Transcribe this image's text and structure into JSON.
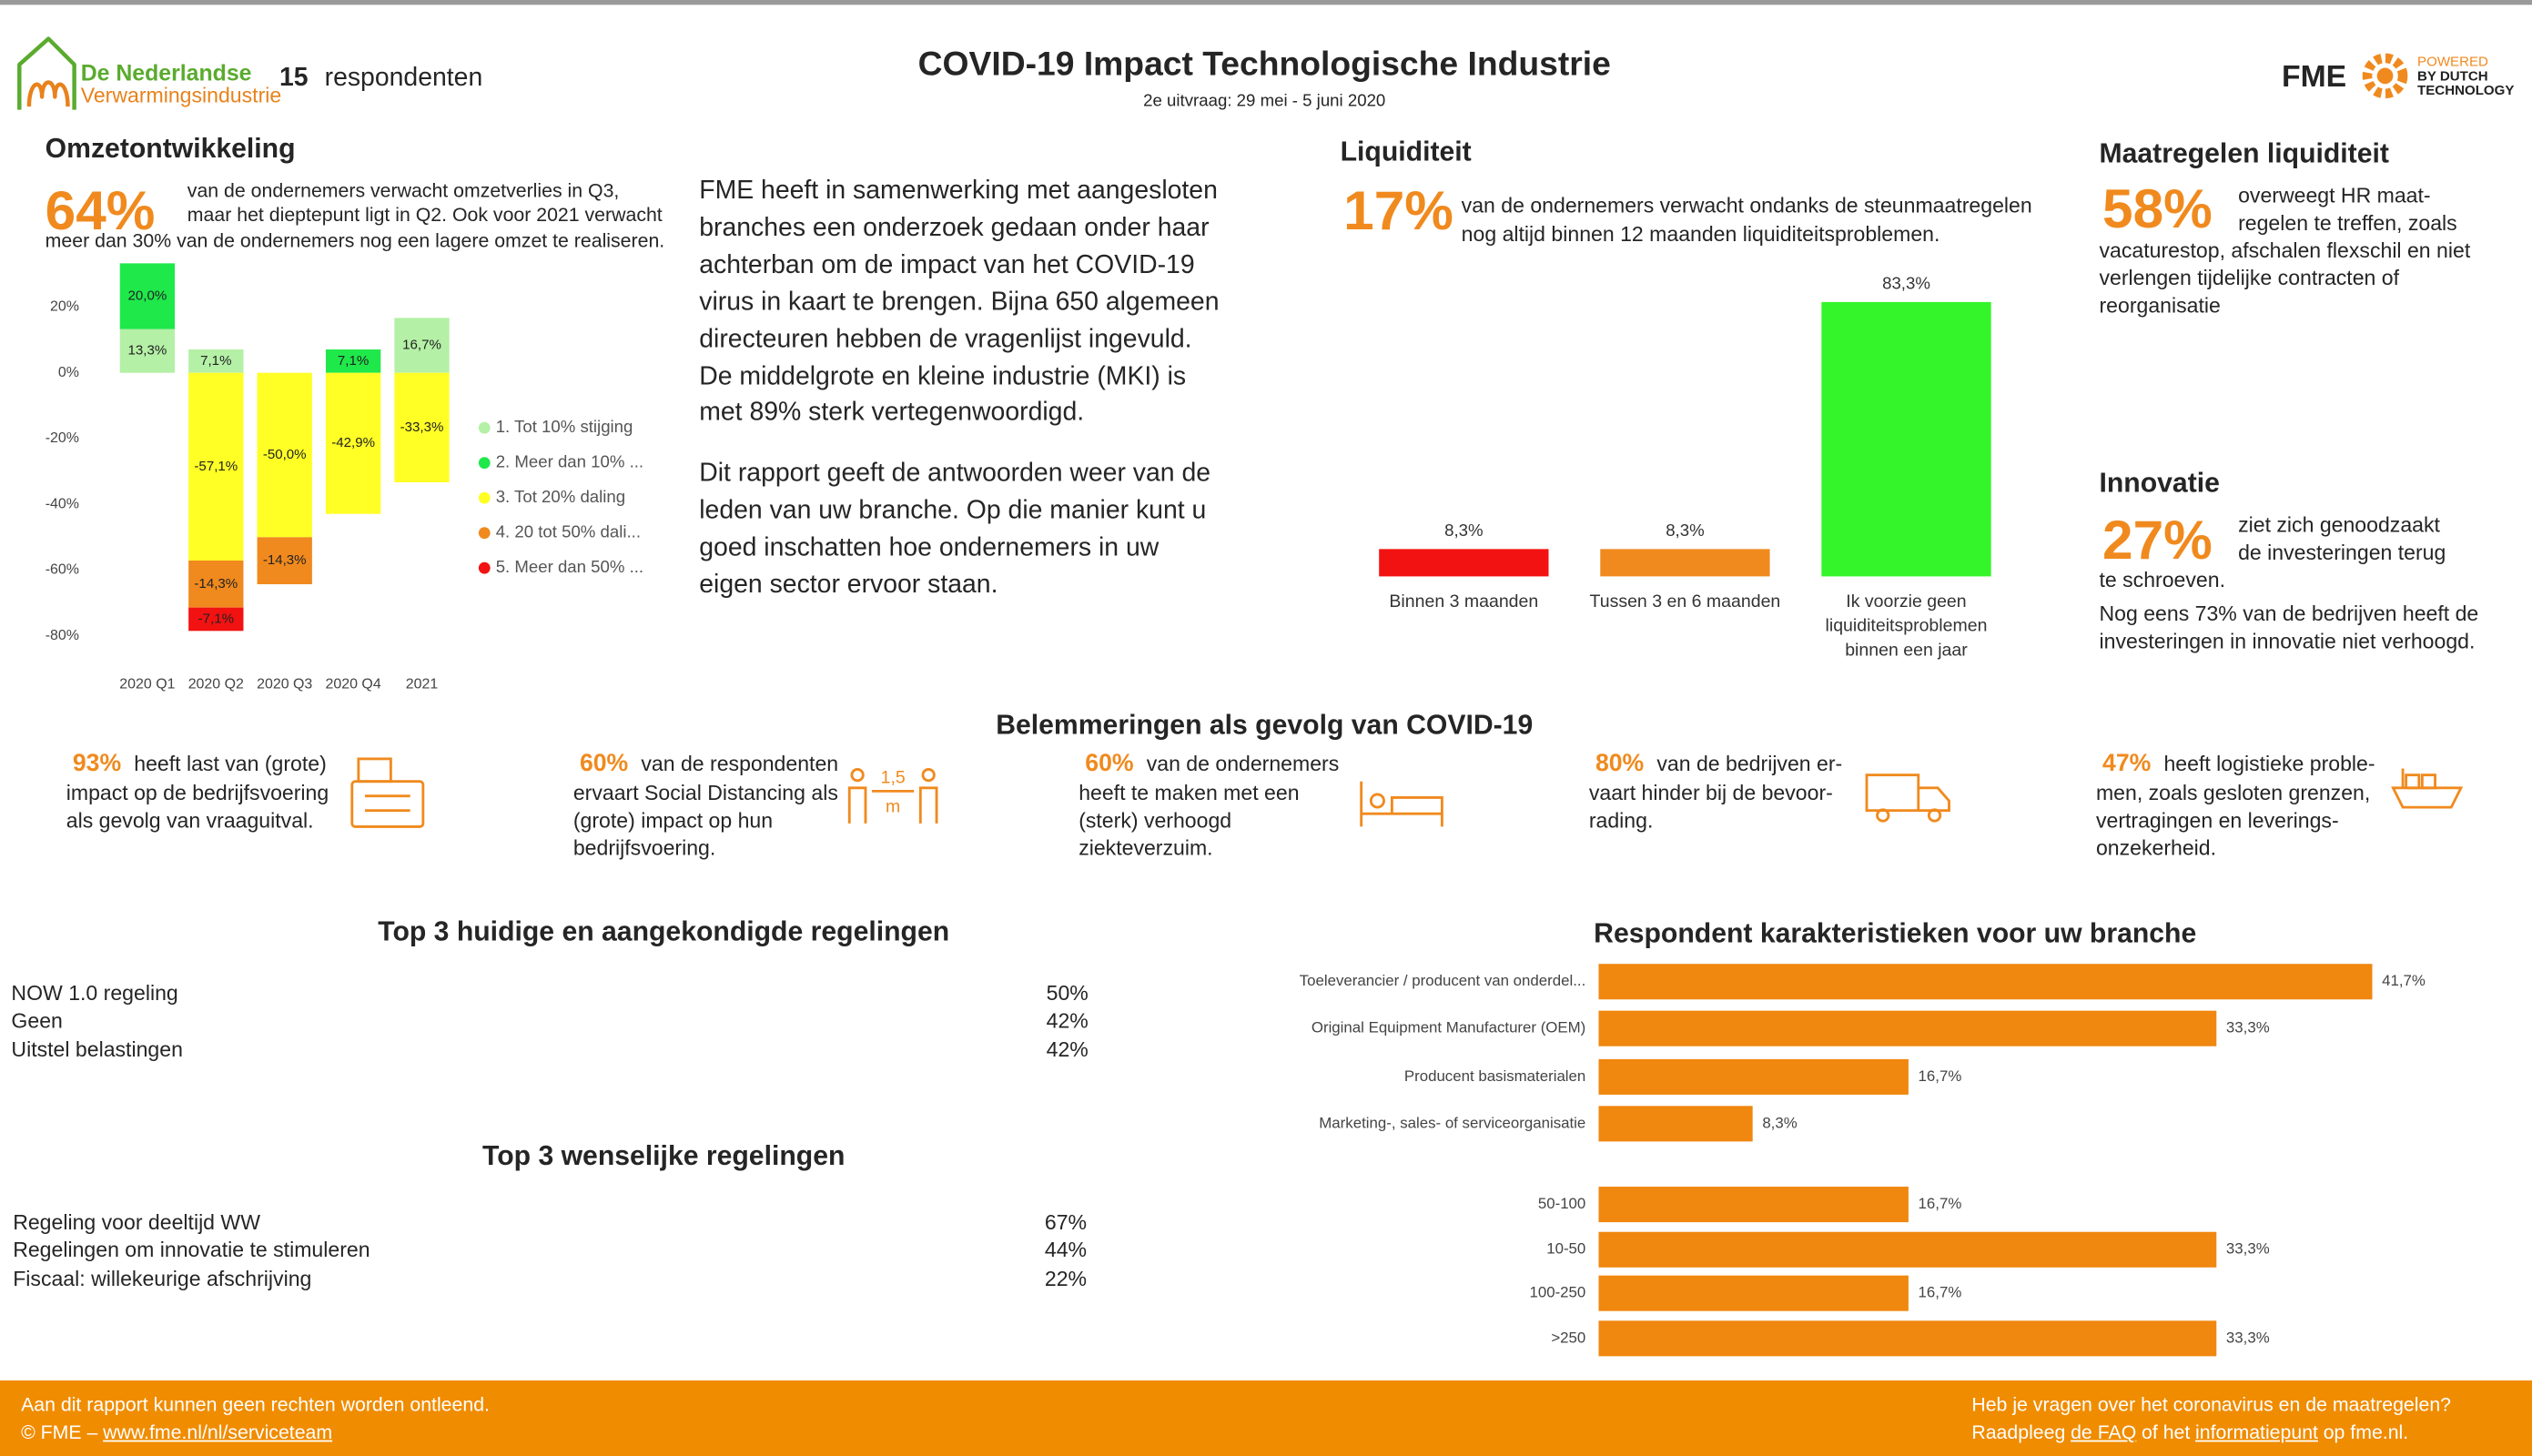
{
  "header": {
    "logo_line1": "De Nederlandse",
    "logo_line2": "Verwarmingsindustrie",
    "respondent_count": "15",
    "respondent_label": "respondenten",
    "title": "COVID-19 Impact Technologische Industrie",
    "subtitle": "2e uitvraag: 29 mei - 5 juni 2020",
    "brand": "FME",
    "brand_tag": [
      "POWERED",
      "BY DUTCH",
      "TECHNOLOGY"
    ]
  },
  "omzet": {
    "heading": "Omzetontwikkeling",
    "figure": "64%",
    "lines": [
      "van de ondernemers verwacht omzetverlies in Q3,",
      "maar het dieptepunt ligt in Q2. Ook voor 2021 verwacht",
      "meer dan 30% van de ondernemers nog een lagere omzet te realiseren."
    ]
  },
  "intro": {
    "paragraphs": [
      [
        "FME heeft in samenwerking met aangesloten",
        "branches een onderzoek gedaan onder haar",
        "achterban om de impact van het COVID-19",
        "virus in kaart te brengen. Bijna 650 algemeen",
        "directeuren hebben de vragenlijst ingevuld.",
        "De middelgrote en kleine industrie (MKI) is",
        "met 89% sterk vertegenwoordigd."
      ],
      [
        "Dit rapport geeft de antwoorden weer van de",
        "leden van uw branche. Op die manier kunt u",
        "goed inschatten hoe ondernemers in uw",
        "eigen sector ervoor staan."
      ]
    ]
  },
  "liquiditeit": {
    "heading": "Liquiditeit",
    "figure": "17%",
    "lines": [
      "van de ondernemers verwacht ondanks de steunmaatregelen",
      "nog altijd binnen 12 maanden liquiditeitsproblemen."
    ]
  },
  "maatregelen": {
    "heading": "Maatregelen liquiditeit",
    "figure": "58%",
    "lines": [
      "overweegt HR maat-",
      "regelen te treffen, zoals",
      "vacaturestop, afschalen flexschil en niet",
      "verlengen tijdelijke contracten of",
      "reorganisatie"
    ]
  },
  "innovatie": {
    "heading": "Innovatie",
    "figure": "27%",
    "lines": [
      "ziet zich genoodzaakt",
      "de investeringen terug",
      "te schroeven.",
      "Nog eens 73% van de bedrijven heeft de",
      "investeringen in innovatie niet verhoogd."
    ]
  },
  "belemmeringen": {
    "heading": "Belemmeringen als gevolg van COVID-19",
    "items": [
      {
        "figure": "93%",
        "lines": [
          "heeft last van (grote)",
          "impact op de bedrijfsvoering",
          "als gevolg van vraaguitval."
        ]
      },
      {
        "figure": "60%",
        "lines": [
          "van de respondenten",
          "ervaart Social Distancing als",
          "(grote) impact op hun",
          "bedrijfsvoering."
        ],
        "icon_label": "1,5",
        "icon_unit": "m"
      },
      {
        "figure": "60%",
        "lines": [
          "van de ondernemers",
          "heeft te maken met een",
          "(sterk) verhoogd",
          "ziekteverzuim."
        ]
      },
      {
        "figure": "80%",
        "lines": [
          "van de bedrijven er-",
          "vaart hinder bij de bevoor-",
          "rading."
        ]
      },
      {
        "figure": "47%",
        "lines": [
          "heeft logistieke proble-",
          "men, zoals gesloten grenzen,",
          "vertragingen en leverings-",
          "onzekerheid."
        ]
      }
    ]
  },
  "regelingen": [
    {
      "title": "Top 3 huidige en aangekondigde regelingen",
      "rows": [
        [
          "NOW 1.0 regeling",
          "50%"
        ],
        [
          "Geen",
          "42%"
        ],
        [
          "Uitstel belastingen",
          "42%"
        ]
      ]
    },
    {
      "title": "Top 3 wenselijke regelingen",
      "rows": [
        [
          "Regeling voor deeltijd WW",
          "67%"
        ],
        [
          "Regelingen om innovatie te stimuleren",
          "44%"
        ],
        [
          "Fiscaal: willekeurige afschrijving",
          "22%"
        ]
      ]
    }
  ],
  "footer": {
    "left_line1": "Aan dit rapport kunnen geen rechten worden ontleend.",
    "left_prefix": "© FME –",
    "left_link": "www.fme.nl/nl/serviceteam",
    "right_line1": "Heb je vragen over het coronavirus en de maatregelen?",
    "right_parts": [
      "Raadpleeg",
      "de FAQ",
      "of het",
      "informatiepunt",
      "op fme.nl."
    ]
  },
  "chart_data": [
    {
      "type": "stacked_bar",
      "categories": [
        "2020 Q1",
        "2020 Q2",
        "2020 Q3",
        "2020 Q4",
        "2021"
      ],
      "ylim": [
        -85,
        25
      ],
      "yticks": [
        {
          "value": 20,
          "label": "20%"
        },
        {
          "value": 0,
          "label": "0%"
        },
        {
          "value": -20,
          "label": "-20%"
        },
        {
          "value": -40,
          "label": "-40%"
        },
        {
          "value": -60,
          "label": "-60%"
        },
        {
          "value": -80,
          "label": "-80%"
        }
      ],
      "legend": "right",
      "series": [
        {
          "name": "1. Tot 10% stijging",
          "color": "#b4f0a6",
          "values": [
            13.3,
            7.1,
            null,
            null,
            16.7
          ],
          "value_labels": [
            "13,3%",
            "7,1%",
            null,
            null,
            "16,7%"
          ]
        },
        {
          "name": "2. Meer dan 10% ...",
          "color": "#1fe84a",
          "values": [
            20.0,
            null,
            null,
            7.1,
            null
          ],
          "value_labels": [
            "20,0%",
            null,
            null,
            "7,1%",
            null
          ]
        },
        {
          "name": "3. Tot 20% daling",
          "color": "#ffff26",
          "values": [
            null,
            -57.1,
            -50.0,
            -42.9,
            -33.3
          ],
          "value_labels": [
            null,
            "-57,1%",
            "-50,0%",
            "-42,9%",
            "-33,3%"
          ]
        },
        {
          "name": "4. 20 tot 50% dali...",
          "color": "#f08a1e",
          "values": [
            null,
            -14.3,
            -14.3,
            null,
            null
          ],
          "value_labels": [
            null,
            "-14,3%",
            "-14,3%",
            null,
            null
          ]
        },
        {
          "name": "5. Meer dan 50% ...",
          "color": "#f21212",
          "values": [
            null,
            -7.1,
            null,
            null,
            null
          ],
          "value_labels": [
            null,
            "-7,1%",
            null,
            null,
            null
          ]
        }
      ]
    },
    {
      "type": "bar",
      "categories": [
        "Binnen 3 maanden",
        "Tussen 3 en 6 maanden",
        "Ik voorzie geen liquiditeitsproblemen binnen een jaar"
      ],
      "values": [
        8.3,
        8.3,
        83.3
      ],
      "value_labels": [
        "8,3%",
        "8,3%",
        "83,3%"
      ],
      "colors": [
        "#f21212",
        "#f08a1e",
        "#33f52a"
      ],
      "ylim": [
        0,
        100
      ]
    },
    {
      "type": "hbar",
      "title": "Respondent karakteristieken voor uw branche",
      "categories": [
        "Toeleverancier / producent van onderdel...",
        "Original Equipment Manufacturer (OEM)",
        "Producent basismaterialen",
        "Marketing-, sales- of serviceorganisatie"
      ],
      "values": [
        41.7,
        33.3,
        16.7,
        8.3
      ],
      "value_labels": [
        "41,7%",
        "33,3%",
        "16,7%",
        "8,3%"
      ],
      "color": "#f0870f",
      "xlim": [
        0,
        45
      ]
    },
    {
      "type": "hbar",
      "categories": [
        "50-100",
        "10-50",
        "100-250",
        ">250"
      ],
      "values": [
        16.7,
        33.3,
        16.7,
        33.3
      ],
      "value_labels": [
        "16,7%",
        "33,3%",
        "16,7%",
        "33,3%"
      ],
      "color": "#f0870f",
      "xlim": [
        0,
        45
      ]
    }
  ]
}
